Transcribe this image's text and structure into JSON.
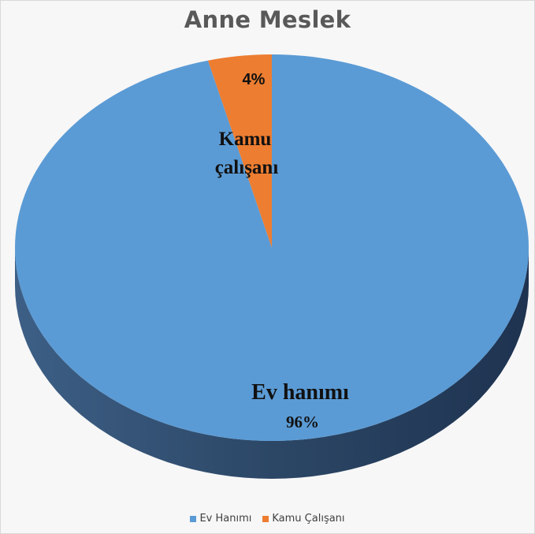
{
  "chart_data": {
    "type": "pie",
    "title": "Anne Meslek",
    "three_d": true,
    "slices": [
      {
        "name": "Ev Hanımı",
        "value": 96,
        "label": "Ev hanımı",
        "pct_label": "96%",
        "color": "#5b9bd5",
        "side_color": "#2e4a6b"
      },
      {
        "name": "Kamu Çalışanı",
        "value": 4,
        "label_lines": [
          "Kamu",
          "çalışanı"
        ],
        "pct_label": "4%",
        "color": "#ed7d31",
        "side_color": "#a3551f"
      }
    ],
    "legend": {
      "position": "bottom",
      "entries": [
        {
          "label": "Ev Hanımı",
          "color": "#5b9bd5"
        },
        {
          "label": "Kamu Çalışanı",
          "color": "#ed7d31"
        }
      ]
    }
  }
}
